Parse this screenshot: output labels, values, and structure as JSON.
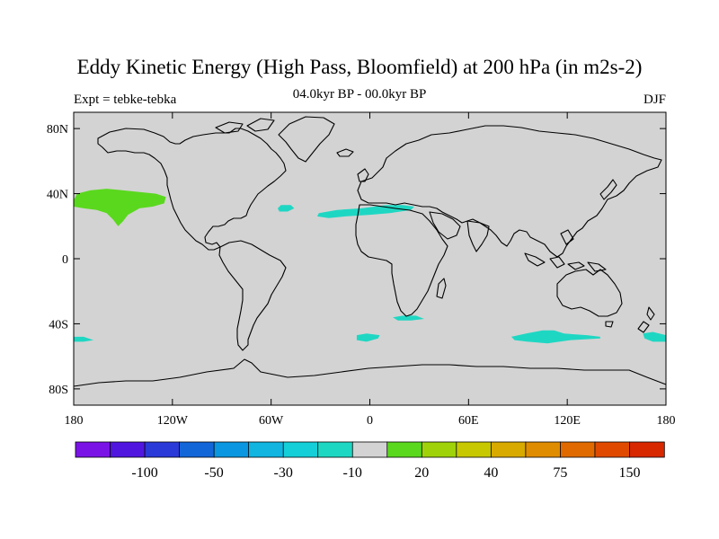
{
  "title": "Eddy Kinetic Energy (High Pass, Bloomfield) at 200 hPa (in m2s-2)",
  "subtitle": "04.0kyr BP - 00.0kyr BP",
  "left_label": "Expt = tebke-tebka",
  "right_label": "DJF",
  "map": {
    "projection": "cylindrical-equidistant",
    "lon_range": [
      -180,
      180
    ],
    "lat_range": [
      -90,
      90
    ],
    "ocean_color": "#d3d3d3",
    "coastline_color": "#000000",
    "lat_ticks": [
      {
        "value": 80,
        "label": "80N"
      },
      {
        "value": 40,
        "label": "40N"
      },
      {
        "value": 0,
        "label": "0"
      },
      {
        "value": -40,
        "label": "40S"
      },
      {
        "value": -80,
        "label": "80S"
      }
    ],
    "lon_ticks": [
      {
        "value": -180,
        "label": "180"
      },
      {
        "value": -120,
        "label": "120W"
      },
      {
        "value": -60,
        "label": "60W"
      },
      {
        "value": 0,
        "label": "0"
      },
      {
        "value": 60,
        "label": "60E"
      },
      {
        "value": 120,
        "label": "120E"
      },
      {
        "value": 180,
        "label": "180"
      }
    ],
    "anomalies": [
      {
        "name": "north-pacific-positive",
        "color": "#5ad81e",
        "points": [
          [
            -180,
            36
          ],
          [
            -178,
            40
          ],
          [
            -170,
            42
          ],
          [
            -160,
            43
          ],
          [
            -150,
            42
          ],
          [
            -140,
            41
          ],
          [
            -130,
            40
          ],
          [
            -124,
            38
          ],
          [
            -125,
            34
          ],
          [
            -132,
            32
          ],
          [
            -140,
            31
          ],
          [
            -147,
            27
          ],
          [
            -150,
            23
          ],
          [
            -153,
            20
          ],
          [
            -156,
            24
          ],
          [
            -160,
            28
          ],
          [
            -166,
            30
          ],
          [
            -174,
            31
          ],
          [
            -180,
            32
          ]
        ]
      },
      {
        "name": "north-atlantic-negative-west",
        "color": "#1ed7c3",
        "points": [
          [
            -54,
            33
          ],
          [
            -48,
            33
          ],
          [
            -46,
            31
          ],
          [
            -50,
            29
          ],
          [
            -55,
            29
          ],
          [
            -56,
            31
          ]
        ]
      },
      {
        "name": "north-atlantic-negative-east",
        "color": "#1ed7c3",
        "points": [
          [
            -31,
            28
          ],
          [
            -20,
            30
          ],
          [
            -5,
            31
          ],
          [
            10,
            33
          ],
          [
            20,
            33
          ],
          [
            27,
            32
          ],
          [
            25,
            30
          ],
          [
            12,
            28
          ],
          [
            0,
            27
          ],
          [
            -15,
            26
          ],
          [
            -25,
            25
          ],
          [
            -32,
            26
          ]
        ]
      },
      {
        "name": "south-africa-negative",
        "color": "#1ed7c3",
        "points": [
          [
            14,
            -36
          ],
          [
            20,
            -35
          ],
          [
            28,
            -35
          ],
          [
            33,
            -37
          ],
          [
            25,
            -38
          ],
          [
            17,
            -38
          ]
        ]
      },
      {
        "name": "south-atlantic-negative",
        "color": "#1ed7c3",
        "points": [
          [
            -8,
            -47
          ],
          [
            -2,
            -46
          ],
          [
            6,
            -47
          ],
          [
            5,
            -49
          ],
          [
            -2,
            -51
          ],
          [
            -8,
            -50
          ]
        ]
      },
      {
        "name": "indian-ocean-negative",
        "color": "#1ed7c3",
        "points": [
          [
            86,
            -48
          ],
          [
            95,
            -46
          ],
          [
            105,
            -44
          ],
          [
            112,
            -44
          ],
          [
            118,
            -46
          ],
          [
            132,
            -47
          ],
          [
            140,
            -48
          ],
          [
            140,
            -49
          ],
          [
            122,
            -50
          ],
          [
            108,
            -52
          ],
          [
            96,
            -51
          ],
          [
            88,
            -50
          ]
        ]
      },
      {
        "name": "south-pacific-negative-west",
        "color": "#1ed7c3",
        "points": [
          [
            -180,
            -48
          ],
          [
            -174,
            -48
          ],
          [
            -168,
            -50
          ],
          [
            -174,
            -51
          ],
          [
            -180,
            -51
          ]
        ]
      },
      {
        "name": "south-pacific-negative-east",
        "color": "#1ed7c3",
        "points": [
          [
            166,
            -46
          ],
          [
            172,
            -45
          ],
          [
            180,
            -47
          ],
          [
            180,
            -51
          ],
          [
            172,
            -51
          ],
          [
            167,
            -49
          ]
        ]
      }
    ]
  },
  "colorbar": {
    "colors": [
      "#7a14e6",
      "#5016e0",
      "#2a3ad8",
      "#1366d8",
      "#0a96e0",
      "#11b5e0",
      "#15cfd8",
      "#1ed7c3",
      "#d3d3d3",
      "#5ad81e",
      "#a0d20a",
      "#c8c800",
      "#d8aa00",
      "#e08c00",
      "#e06a00",
      "#e04a00",
      "#d82800"
    ],
    "labels": [
      "-100",
      "-50",
      "-30",
      "-10",
      "20",
      "40",
      "75",
      "150"
    ],
    "label_boundaries": [
      2,
      4,
      6,
      8,
      10,
      12,
      14,
      16
    ]
  }
}
